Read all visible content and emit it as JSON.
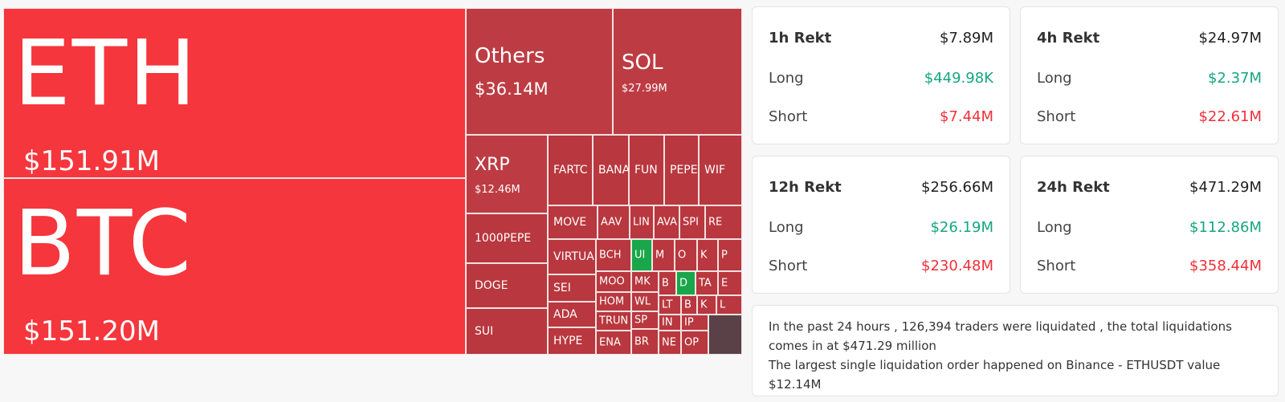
{
  "treemap": {
    "eth": {
      "symbol": "ETH",
      "value": "$151.91M"
    },
    "btc": {
      "symbol": "BTC",
      "value": "$151.20M"
    },
    "others": {
      "symbol": "Others",
      "value": "$36.14M"
    },
    "sol": {
      "symbol": "SOL",
      "value": "$27.99M"
    },
    "xrp": {
      "symbol": "XRP",
      "value": "$12.46M"
    },
    "pepe1000": {
      "symbol": "1000PEPE"
    },
    "doge": {
      "symbol": "DOGE"
    },
    "sui": {
      "symbol": "SUI"
    },
    "small": [
      "FARTC",
      "BANA",
      "FUN",
      "PEPE",
      "WIF",
      "MOVE",
      "AAV",
      "LIN",
      "AVA",
      "SPI",
      "RE",
      "VIRTUA",
      "BCH",
      "UI",
      "M",
      "O",
      "K",
      "P",
      "SEI",
      "MOO",
      "MK",
      "B",
      "D",
      "TA",
      "E",
      "HOM",
      "WL",
      "LT",
      "B",
      "K",
      "L",
      "ADA",
      "TRUN",
      "SP",
      "IN",
      "IP",
      "HYPE",
      "ENA",
      "BR",
      "NE",
      "OP"
    ]
  },
  "cards": {
    "h1": {
      "title": "1h Rekt",
      "total": "$7.89M",
      "long_label": "Long",
      "long": "$449.98K",
      "short_label": "Short",
      "short": "$7.44M"
    },
    "h4": {
      "title": "4h Rekt",
      "total": "$24.97M",
      "long_label": "Long",
      "long": "$2.37M",
      "short_label": "Short",
      "short": "$22.61M"
    },
    "h12": {
      "title": "12h Rekt",
      "total": "$256.66M",
      "long_label": "Long",
      "long": "$26.19M",
      "short_label": "Short",
      "short": "$230.48M"
    },
    "h24": {
      "title": "24h Rekt",
      "total": "$471.29M",
      "long_label": "Long",
      "long": "$112.86M",
      "short_label": "Short",
      "short": "$358.44M"
    }
  },
  "summary": {
    "line1": "In the past 24 hours , 126,394 traders were liquidated , the total liquidations comes in at $471.29 million",
    "line2": "The largest single liquidation order happened on Binance - ETHUSDT value $12.14M"
  },
  "colors": {
    "big": "#f5363c",
    "mid": "#bd3c43",
    "long": "#16a681",
    "short": "#f0303a",
    "gain": "#1aa64a"
  }
}
